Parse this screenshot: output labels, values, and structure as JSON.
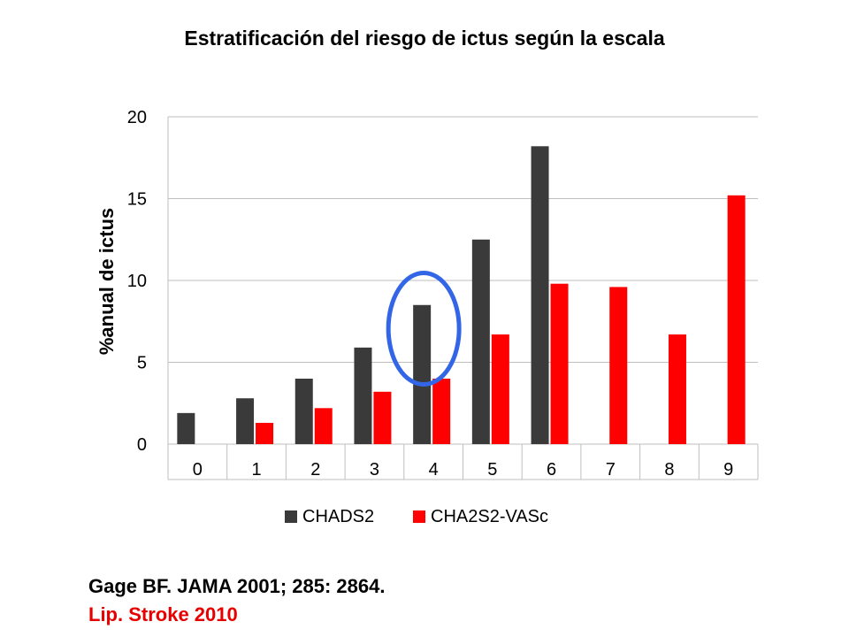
{
  "title": "Estratificación del riesgo de ictus según la escala",
  "references": {
    "line1": "Gage BF. JAMA 2001; 285: 2864.",
    "line2": "Lip. Stroke 2010"
  },
  "colors": {
    "chads2": "#3a3a3a",
    "cha2ds2vasc": "#ff0000",
    "highlight_circle": "#3366e6",
    "reference_red": "#e80000"
  },
  "chart_data": {
    "type": "bar",
    "title": "Estratificación del riesgo de ictus según la escala",
    "xlabel": "",
    "ylabel": "%anual de ictus",
    "categories": [
      "0",
      "1",
      "2",
      "3",
      "4",
      "5",
      "6",
      "7",
      "8",
      "9"
    ],
    "ylim": [
      0,
      20
    ],
    "yticks": [
      "0",
      "5",
      "10",
      "15",
      "20"
    ],
    "grid": true,
    "legend_position": "bottom",
    "series": [
      {
        "name": "CHADS2",
        "color": "#3a3a3a",
        "values": [
          1.9,
          2.8,
          4.0,
          5.9,
          8.5,
          12.5,
          18.2,
          null,
          null,
          null
        ]
      },
      {
        "name": "CHA2S2-VASc",
        "color": "#ff0000",
        "values": [
          null,
          1.3,
          2.2,
          3.2,
          4.0,
          6.7,
          9.8,
          9.6,
          6.7,
          15.2
        ]
      }
    ],
    "annotations": [
      {
        "type": "ellipse",
        "category": "4",
        "series": "CHADS2",
        "color": "#3366e6"
      }
    ]
  }
}
